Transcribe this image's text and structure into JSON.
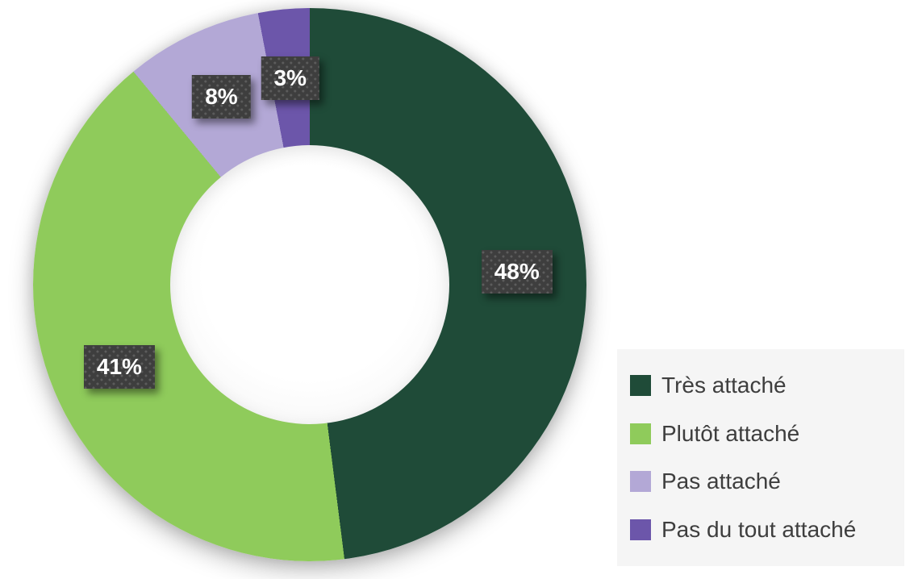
{
  "chart_data": {
    "type": "pie",
    "variant": "donut",
    "title": "",
    "categories": [
      "Très attaché",
      "Plutôt attaché",
      "Pas attaché",
      "Pas du tout attaché"
    ],
    "values": [
      48,
      41,
      8,
      3
    ],
    "data_labels": [
      "48%",
      "41%",
      "8%",
      "3%"
    ],
    "colors": [
      "#1F4B38",
      "#8FCB5B",
      "#B3A8D6",
      "#6C56AA"
    ],
    "start_angle_deg": 0,
    "direction": "clockwise",
    "hole_ratio": 0.5,
    "grid": false,
    "legend_position": "right",
    "data_label_box_color": "#3E3E3E",
    "data_label_text_color": "#FFFFFF",
    "legend_background": "#F5F5F5",
    "legend_text_color": "#3E3E3E",
    "background": "#FFFFFF"
  },
  "legend": {
    "items": [
      {
        "label": "Très attaché",
        "color": "#1F4B38"
      },
      {
        "label": "Plutôt attaché",
        "color": "#8FCB5B"
      },
      {
        "label": "Pas attaché",
        "color": "#B3A8D6"
      },
      {
        "label": "Pas du tout attaché",
        "color": "#6C56AA"
      }
    ]
  }
}
